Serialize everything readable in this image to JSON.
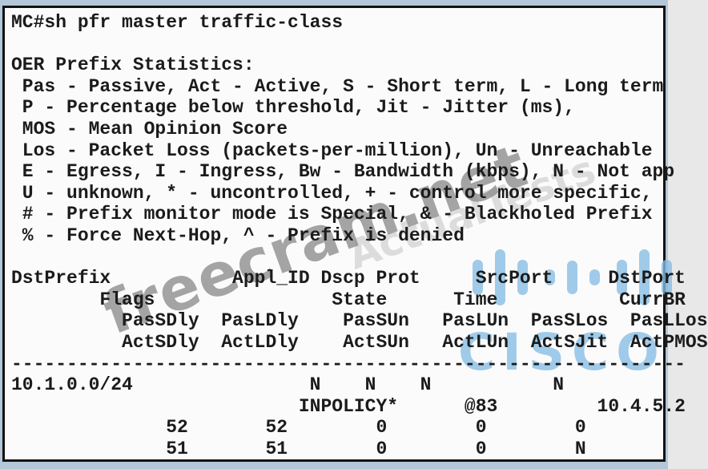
{
  "terminal": {
    "lines": [
      "MC#sh pfr master traffic-class",
      "",
      "OER Prefix Statistics:",
      " Pas - Passive, Act - Active, S - Short term, L - Long term",
      " P - Percentage below threshold, Jit - Jitter (ms),",
      " MOS - Mean Opinion Score",
      " Los - Packet Loss (packets-per-million), Un - Unreachable",
      " E - Egress, I - Ingress, Bw - Bandwidth (kbps), N - Not app",
      " U - unknown, * - uncontrolled, + - control more specific,",
      " # - Prefix monitor mode is Special, & - Blackholed Prefix",
      " % - Force Next-Hop, ^ - Prefix is denied",
      "",
      "DstPrefix           Appl_ID Dscp Prot     SrcPort     DstPort",
      "        Flags                State      Time           CurrBR",
      "          PasSDly  PasLDly    PasSUn   PasLUn  PasSLos  PasLLos",
      "          ActSDly  ActLDly    ActSUn   ActLUn  ActSJit  ActPMOS",
      "-------------------------------------------------------------",
      "10.1.0.0/24                N    N    N           N",
      "                          INPOLICY*      @83         10.4.5.2",
      "              52       52        0        0        0",
      "              51       51        0        0        N"
    ]
  },
  "watermarks": {
    "primary": "freecram.net",
    "secondary": "ActualTests"
  },
  "logo": {
    "text": "CISCO",
    "color": "#87bde4",
    "bar_heights": [
      44,
      70,
      44,
      20,
      42,
      20,
      44,
      70,
      44
    ]
  },
  "colors": {
    "frame_bg": "#b4c7d8",
    "screen_bg": "#fbfbfb",
    "border": "#121212",
    "text": "#1b1b1b",
    "watermark_primary": "#8f8f8f",
    "watermark_secondary": "#c9c9c9"
  }
}
